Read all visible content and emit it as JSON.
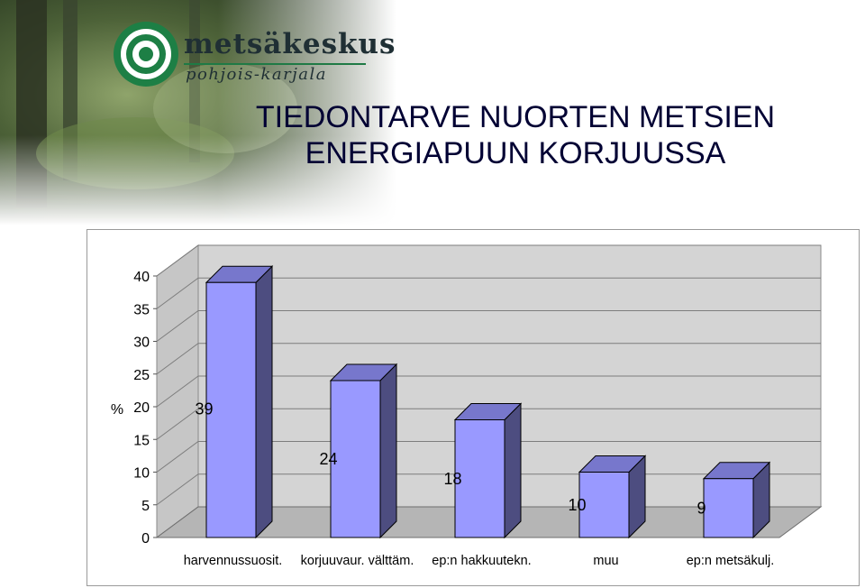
{
  "logo": {
    "word": "metsäkeskus",
    "region": "pohjois-karjala"
  },
  "title": {
    "line1": "TIEDONTARVE NUORTEN METSIEN",
    "line2": "ENERGIAPUUN KORJUUSSA"
  },
  "colors": {
    "bar_front": "#9999ff",
    "bar_side": "#4d4d80",
    "bar_top": "#7777cc",
    "wall": "#d4d4d4",
    "floor": "#b5b5b5"
  },
  "chart_data": {
    "type": "bar",
    "three_d": true,
    "categories": [
      "harvennussuosit.",
      "korjuuvaur. välttäm.",
      "ep:n hakkuutekn.",
      "muu",
      "ep:n metsäkulj."
    ],
    "values": [
      39,
      24,
      18,
      10,
      9
    ],
    "data_labels": [
      "39",
      "24",
      "18",
      "10",
      "9"
    ],
    "ylabel": "%",
    "xlabel": "",
    "ylim": [
      0,
      40
    ],
    "yticks": [
      0,
      5,
      10,
      15,
      20,
      25,
      30,
      35,
      40
    ],
    "grid": true,
    "legend": "none"
  }
}
